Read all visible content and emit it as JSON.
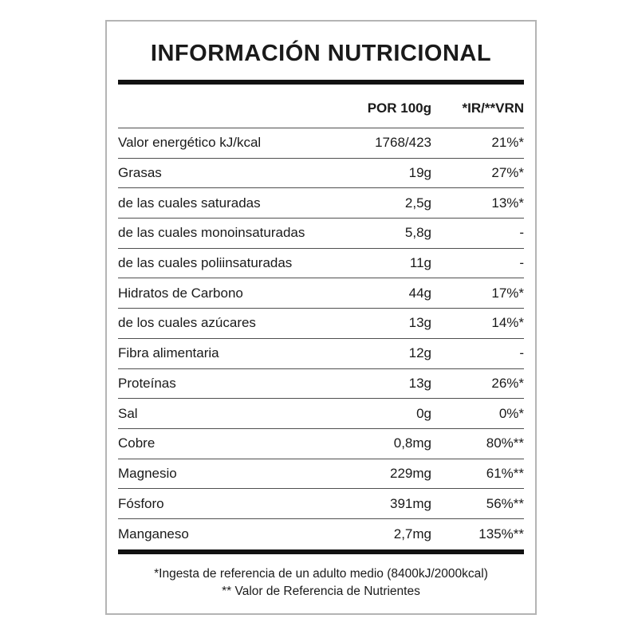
{
  "title": "INFORMACIÓN NUTRICIONAL",
  "columns": {
    "per_100g": "POR 100g",
    "ir_vrn": "*IR/**VRN"
  },
  "rows": [
    {
      "label": "Valor energético kJ/kcal",
      "per100g": "1768/423",
      "ir": "21%*"
    },
    {
      "label": "Grasas",
      "per100g": "19g",
      "ir": "27%*"
    },
    {
      "label": "de las cuales saturadas",
      "per100g": "2,5g",
      "ir": "13%*"
    },
    {
      "label": "de las cuales monoinsaturadas",
      "per100g": "5,8g",
      "ir": "-"
    },
    {
      "label": "de las cuales poliinsaturadas",
      "per100g": "11g",
      "ir": "-"
    },
    {
      "label": "Hidratos de Carbono",
      "per100g": "44g",
      "ir": "17%*"
    },
    {
      "label": "de los cuales azúcares",
      "per100g": "13g",
      "ir": "14%*"
    },
    {
      "label": "Fibra alimentaria",
      "per100g": "12g",
      "ir": "-"
    },
    {
      "label": "Proteínas",
      "per100g": "13g",
      "ir": "26%*"
    },
    {
      "label": "Sal",
      "per100g": "0g",
      "ir": "0%*"
    },
    {
      "label": "Cobre",
      "per100g": "0,8mg",
      "ir": "80%**"
    },
    {
      "label": "Magnesio",
      "per100g": "229mg",
      "ir": "61%**"
    },
    {
      "label": "Fósforo",
      "per100g": "391mg",
      "ir": "56%**"
    },
    {
      "label": "Manganeso",
      "per100g": "2,7mg",
      "ir": "135%**"
    }
  ],
  "footnotes": {
    "line1": "*Ingesta de referencia de un adulto medio (8400kJ/2000kcal)",
    "line2": "** Valor de Referencia de Nutrientes"
  },
  "colors": {
    "text": "#1a1a1a",
    "box_border": "#b4b4b4",
    "thick_rule": "#121212",
    "row_separator": "#4f4f4f",
    "background": "#ffffff"
  }
}
